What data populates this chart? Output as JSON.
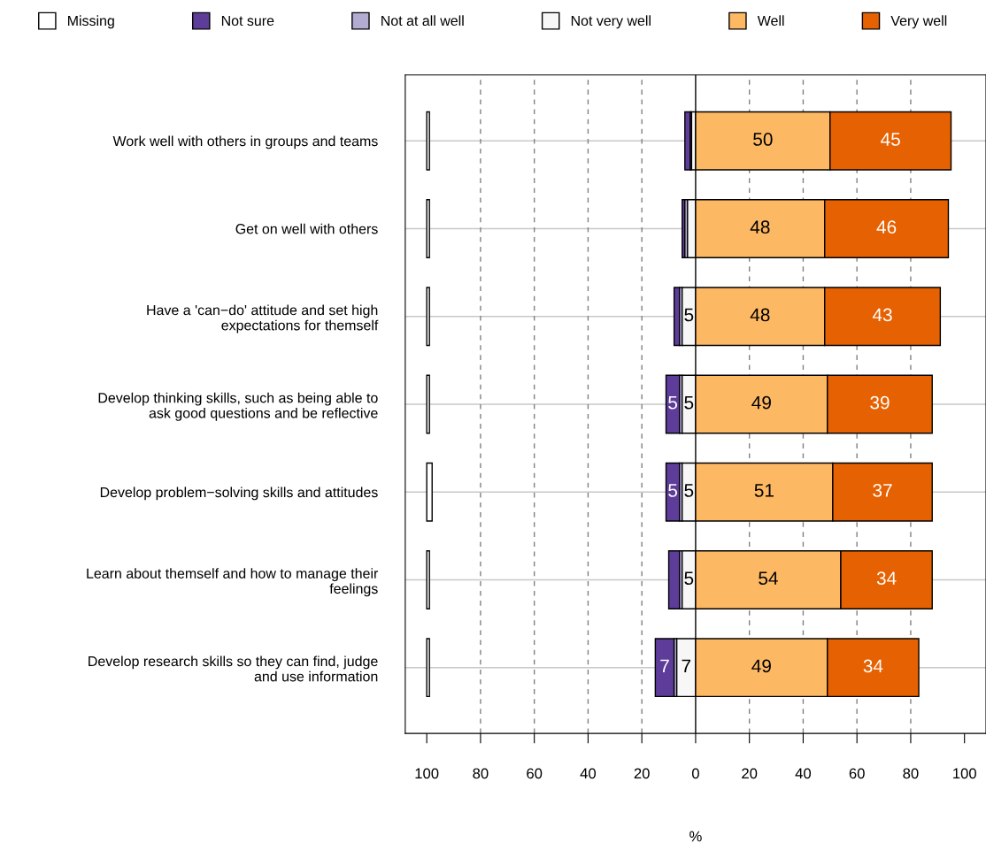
{
  "chart_data": {
    "type": "bar",
    "orientation": "horizontal",
    "xlabel": "%",
    "categories": [
      "Work well with others in groups and teams",
      "Get on well with others",
      "Have a 'can−do' attitude and set high\nexpectations for themself",
      "Develop thinking skills, such as being able to\nask good questions and be reflective",
      "Develop problem−solving skills and attitudes",
      "Learn about themself and how to manage their\nfeelings",
      "Develop research skills so they can find, judge\nand use information"
    ],
    "series": [
      {
        "name": "Missing",
        "color": "#ffffff",
        "base": [
          -100,
          -100,
          -100,
          -100,
          -100,
          -100,
          -100
        ],
        "values": [
          1,
          1,
          1,
          1,
          2,
          1,
          1
        ]
      },
      {
        "name": "Not sure",
        "color": "#5e3c99",
        "base": [
          -4,
          -5,
          -8,
          -11,
          -11,
          -10,
          -15
        ],
        "values": [
          2,
          1,
          2,
          5,
          5,
          4,
          7
        ],
        "value_labels": [
          null,
          null,
          null,
          "5",
          "5",
          null,
          "7"
        ]
      },
      {
        "name": "Not at all well",
        "color": "#b2abd2",
        "base": [
          -2,
          -4,
          -6,
          -6,
          -6,
          -6,
          -8
        ],
        "values": [
          0.5,
          1,
          1,
          1,
          1,
          1,
          1
        ]
      },
      {
        "name": "Not very well",
        "color": "#f7f7f7",
        "base": [
          -1.5,
          -3,
          -5,
          -5,
          -5,
          -5,
          -7
        ],
        "values": [
          1.5,
          3,
          5,
          5,
          5,
          5,
          7
        ],
        "value_labels": [
          null,
          null,
          "5",
          "5",
          "5",
          "5",
          "7"
        ]
      },
      {
        "name": "Well",
        "color": "#fdb863",
        "base": [
          0,
          0,
          0,
          0,
          0,
          0,
          0
        ],
        "values": [
          50,
          48,
          48,
          49,
          51,
          54,
          49
        ],
        "value_labels": [
          "50",
          "48",
          "48",
          "49",
          "51",
          "54",
          "49"
        ]
      },
      {
        "name": "Very well",
        "color": "#e66101",
        "base": [
          50,
          48,
          48,
          49,
          51,
          54,
          49
        ],
        "values": [
          45,
          46,
          43,
          39,
          37,
          34,
          34
        ],
        "value_labels": [
          "45",
          "46",
          "43",
          "39",
          "37",
          "34",
          "34"
        ]
      }
    ],
    "xlim": [
      -108,
      108
    ],
    "xticks": [
      {
        "value": -100,
        "label": "100"
      },
      {
        "value": -80,
        "label": "80"
      },
      {
        "value": -60,
        "label": "60"
      },
      {
        "value": -40,
        "label": "40"
      },
      {
        "value": -20,
        "label": "20"
      },
      0,
      20,
      40,
      60,
      80,
      100
    ],
    "ref_lines": [
      {
        "axis": "x",
        "value": -80,
        "color": "#808080",
        "line_style": "dashed"
      },
      {
        "axis": "x",
        "value": -60,
        "color": "#808080",
        "line_style": "dashed"
      },
      {
        "axis": "x",
        "value": -40,
        "color": "#808080",
        "line_style": "dashed"
      },
      {
        "axis": "x",
        "value": -20,
        "color": "#808080",
        "line_style": "dashed"
      },
      {
        "axis": "x",
        "value": 0,
        "color": "#000000",
        "line_style": "solid"
      },
      {
        "axis": "x",
        "value": 20,
        "color": "#808080",
        "line_style": "dashed"
      },
      {
        "axis": "x",
        "value": 40,
        "color": "#808080",
        "line_style": "dashed"
      },
      {
        "axis": "x",
        "value": 60,
        "color": "#808080",
        "line_style": "dashed"
      },
      {
        "axis": "x",
        "value": 80,
        "color": "#808080",
        "line_style": "dashed"
      }
    ],
    "grid": "y",
    "legend": "top"
  }
}
